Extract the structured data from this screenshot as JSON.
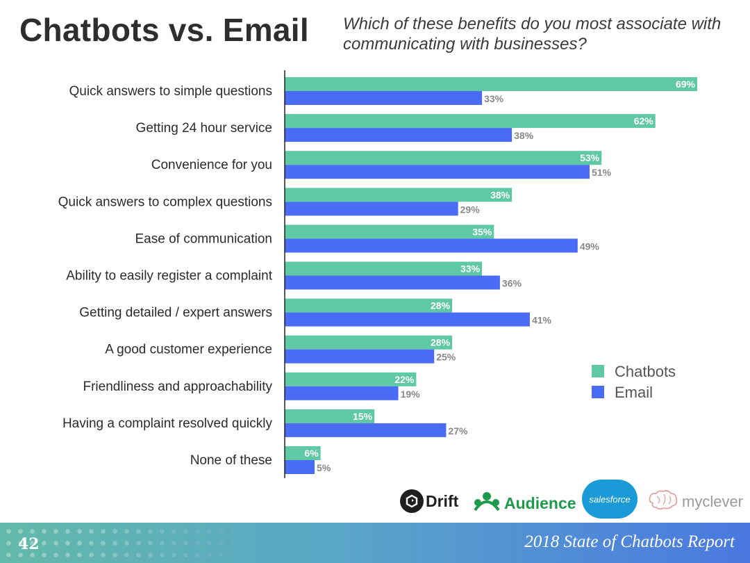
{
  "header": {
    "title": "Chatbots vs. Email",
    "subtitle": "Which of these benefits do you most associate with communicating with businesses?"
  },
  "colors": {
    "chatbots": "#5fc8a5",
    "email": "#4a6cf4"
  },
  "chart_data": {
    "type": "bar",
    "orientation": "horizontal",
    "categories": [
      "Quick answers to simple questions",
      "Getting 24 hour service",
      "Convenience for you",
      "Quick answers to complex questions",
      "Ease of communication",
      "Ability to easily register a complaint",
      "Getting detailed / expert answers",
      "A good customer experience",
      "Friendliness and approachability",
      "Having a complaint resolved quickly",
      "None of these"
    ],
    "series": [
      {
        "name": "Chatbots",
        "values": [
          69,
          62,
          53,
          38,
          35,
          33,
          28,
          28,
          22,
          15,
          6
        ]
      },
      {
        "name": "Email",
        "values": [
          33,
          38,
          51,
          29,
          49,
          36,
          41,
          25,
          19,
          27,
          5
        ]
      }
    ],
    "value_suffix": "%",
    "xlim": [
      0,
      69
    ],
    "grid": false,
    "legend_position": "right"
  },
  "logos": {
    "drift": "Drift",
    "audience": "Audience",
    "salesforce": "salesforce",
    "myclever": "myclever"
  },
  "footer": {
    "page_number": "42",
    "report_title": "2018 State of Chatbots Report"
  }
}
